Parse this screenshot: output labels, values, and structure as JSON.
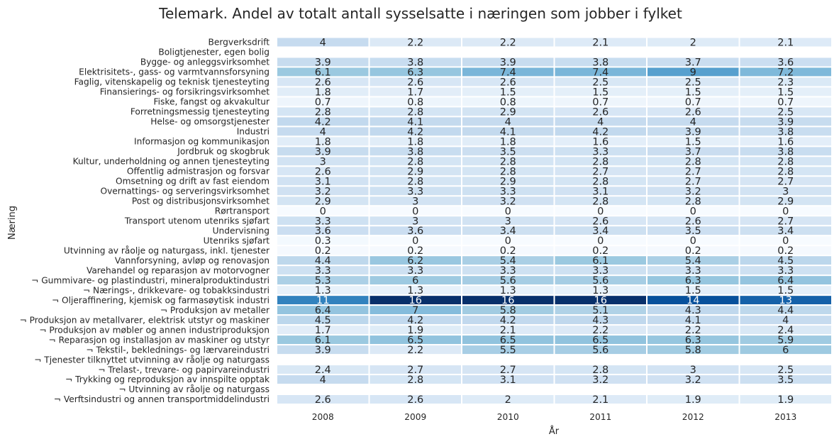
{
  "chart_data": {
    "type": "heatmap",
    "title": "Telemark. Andel av totalt antall sysselsatte i næringen som jobber i fylket",
    "xlabel": "År",
    "ylabel": "Næring",
    "x": [
      "2008",
      "2009",
      "2010",
      "2011",
      "2012",
      "2013"
    ],
    "y": [
      "Bergverksdrift",
      "Boligtjenester, egen bolig",
      "Bygge- og anleggsvirksomhet",
      "Elektrisitets-, gass- og varmtvannsforsyning",
      "Faglig, vitenskapelig og teknisk tjenesteyting",
      "Finansierings- og forsikringsvirksomhet",
      "Fiske, fangst og akvakultur",
      "Forretningsmessig tjenesteyting",
      "Helse- og omsorgstjenester",
      "Industri",
      "Informasjon og kommunikasjon",
      "Jordbruk og skogbruk",
      "Kultur, underholdning og annen tjenesteyting",
      "Offentlig admistrasjon og forsvar",
      "Omsetning og drift av fast eiendom",
      "Overnattings- og serveringsvirksomhet",
      "Post og distribusjonsvirksomhet",
      "Rørtransport",
      "Transport utenom utenriks sjøfart",
      "Undervisning",
      "Utenriks sjøfart",
      "Utvinning av råolje og naturgass, inkl. tjenester",
      "Vannforsyning, avløp og renovasjon",
      "Varehandel og reparasjon av motorvogner",
      "¬ Gummivare- og plastindustri, mineralproduktindustri",
      "¬ Nærings-, drikkevare- og tobakksindustri",
      "¬ Oljeraffinering, kjemisk og farmasøytisk industri",
      "¬ Produksjon av metaller",
      "¬ Produksjon av metallvarer, elektrisk utstyr og maskiner",
      "¬ Produksjon av møbler og annen industriproduksjon",
      "¬ Reparasjon og installasjon av maskiner og utstyr",
      "¬ Tekstil-, beklednings- og lærvareindustri",
      "¬ Tjenester tilknyttet utvinning av råolje og naturgass",
      "¬ Trelast-, trevare- og papirvareindustri",
      "¬ Trykking og reproduksjon av innspilte opptak",
      "¬ Utvinning av råolje og naturgass",
      "¬ Verftsindustri og annen transportmiddelindustri"
    ],
    "values": [
      [
        4,
        2.2,
        2.2,
        2.1,
        2,
        2.1
      ],
      [
        null,
        null,
        null,
        null,
        null,
        null
      ],
      [
        3.9,
        3.8,
        3.9,
        3.8,
        3.7,
        3.6
      ],
      [
        6.1,
        6.3,
        7.4,
        7.4,
        9,
        7.2
      ],
      [
        2.6,
        2.6,
        2.6,
        2.5,
        2.5,
        2.3
      ],
      [
        1.8,
        1.7,
        1.5,
        1.5,
        1.5,
        1.5
      ],
      [
        0.7,
        0.8,
        0.8,
        0.7,
        0.7,
        0.7
      ],
      [
        2.8,
        2.8,
        2.9,
        2.6,
        2.6,
        2.5
      ],
      [
        4.2,
        4.1,
        4,
        4,
        4,
        3.9
      ],
      [
        4,
        4.2,
        4.1,
        4.2,
        3.9,
        3.8
      ],
      [
        1.8,
        1.8,
        1.8,
        1.6,
        1.5,
        1.6
      ],
      [
        3.9,
        3.8,
        3.5,
        3.3,
        3.7,
        3.8
      ],
      [
        3,
        2.8,
        2.8,
        2.8,
        2.8,
        2.8
      ],
      [
        2.6,
        2.9,
        2.8,
        2.7,
        2.7,
        2.8
      ],
      [
        3.1,
        2.8,
        2.9,
        2.8,
        2.7,
        2.7
      ],
      [
        3.2,
        3.3,
        3.3,
        3.1,
        3.2,
        3
      ],
      [
        2.9,
        3,
        3.2,
        2.8,
        2.8,
        2.9
      ],
      [
        0,
        0,
        0,
        0,
        0,
        0
      ],
      [
        3.3,
        3,
        3,
        2.6,
        2.6,
        2.7
      ],
      [
        3.6,
        3.6,
        3.4,
        3.4,
        3.5,
        3.4
      ],
      [
        0.3,
        0,
        0,
        0,
        0,
        0
      ],
      [
        0.2,
        0.2,
        0.2,
        0.2,
        0.2,
        0.2
      ],
      [
        4.4,
        6.2,
        5.4,
        6.1,
        5.4,
        4.5
      ],
      [
        3.3,
        3.3,
        3.3,
        3.3,
        3.3,
        3.3
      ],
      [
        5.3,
        6,
        5.6,
        5.6,
        6.3,
        6.4
      ],
      [
        1.3,
        1.3,
        1.3,
        1.3,
        1.5,
        1.5
      ],
      [
        11,
        16,
        16,
        16,
        14,
        13
      ],
      [
        6.4,
        7,
        5.8,
        5.1,
        4.3,
        4.4
      ],
      [
        4.5,
        4.2,
        4.2,
        4.3,
        4.1,
        4
      ],
      [
        1.7,
        1.9,
        2.1,
        2.2,
        2.2,
        2.4
      ],
      [
        6.1,
        6.5,
        6.5,
        6.5,
        6.3,
        5.9
      ],
      [
        3.9,
        2.2,
        5.5,
        5.6,
        5.8,
        6
      ],
      [
        null,
        null,
        null,
        null,
        null,
        null
      ],
      [
        2.4,
        2.7,
        2.7,
        2.8,
        3,
        2.5
      ],
      [
        4,
        2.8,
        3.1,
        3.2,
        3.2,
        3.5
      ],
      [
        null,
        null,
        null,
        null,
        null,
        null
      ],
      [
        2.6,
        2.6,
        2,
        2.1,
        1.9,
        1.9
      ]
    ],
    "colormap": "Blues",
    "vmin": 0,
    "vmax": 16,
    "colors": {
      "low": "#f7fbff",
      "high": "#08306b",
      "light_text": "#ffffff",
      "dark_text": "#262626"
    },
    "grid": false,
    "legend": "none"
  }
}
